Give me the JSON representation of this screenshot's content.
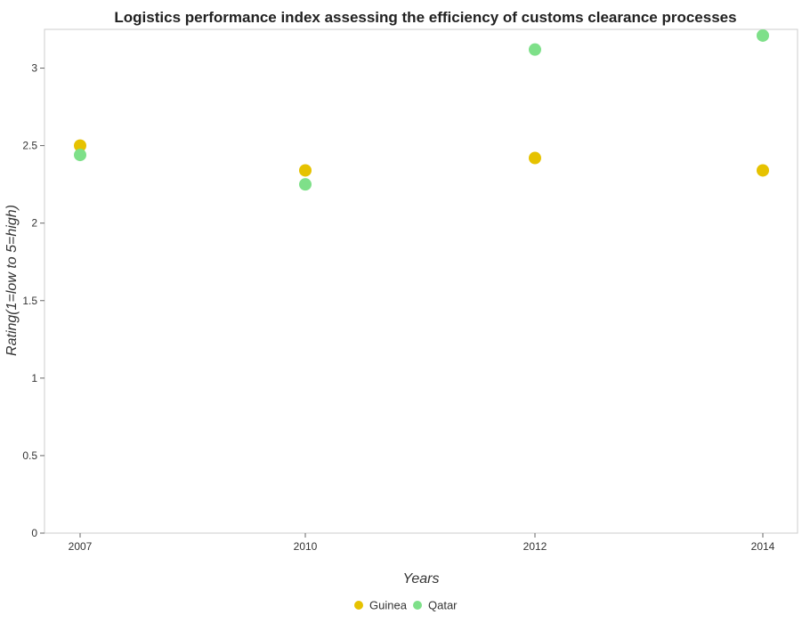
{
  "chart_data": {
    "type": "scatter",
    "title": "Logistics performance index assessing the efficiency of customs clearance processes",
    "xlabel": "Years",
    "ylabel": "Rating(1=low to 5=high)",
    "categories": [
      "2007",
      "2010",
      "2012",
      "2014"
    ],
    "ylim": [
      0,
      3.25
    ],
    "yticks": [
      0,
      0.5,
      1,
      1.5,
      2,
      2.5,
      3
    ],
    "ytick_labels": [
      "0",
      "0.5",
      "1",
      "1.5",
      "2",
      "2.5",
      "3"
    ],
    "grid": false,
    "legend_position": "bottom-center",
    "series": [
      {
        "name": "Guinea",
        "color": "#e6c200",
        "values": [
          2.5,
          2.34,
          2.42,
          2.34
        ]
      },
      {
        "name": "Qatar",
        "color": "#7ee089",
        "values": [
          2.44,
          2.25,
          3.12,
          3.21
        ]
      }
    ]
  }
}
